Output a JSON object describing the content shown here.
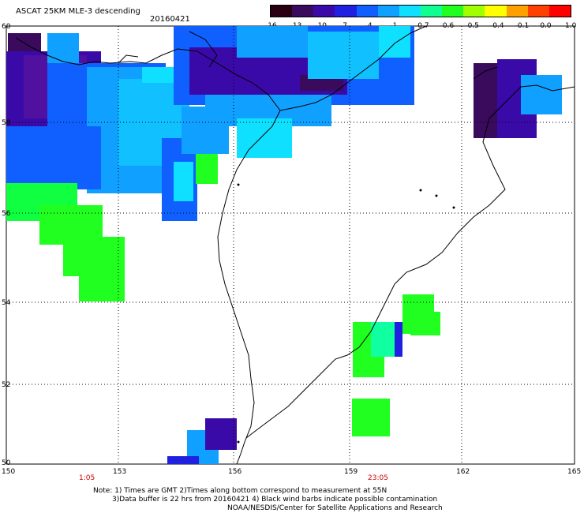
{
  "header": {
    "title": "ASCAT 25KM MLE-3 descending",
    "date": "20160421"
  },
  "colorbar": {
    "labels": [
      "-16",
      "-13",
      "-10",
      "-7",
      "-4",
      "-1",
      "-0.7",
      "-0.6",
      "-0.5",
      "-0.4",
      "-0.1",
      "0.0",
      "1.0"
    ],
    "colors": [
      "#2a0010",
      "#3a0a5c",
      "#3a0aa8",
      "#2020e0",
      "#1060ff",
      "#10a0ff",
      "#10e0ff",
      "#10ff90",
      "#20ff20",
      "#a0ff00",
      "#ffff00",
      "#ffa000",
      "#ff4000",
      "#ff0000"
    ]
  },
  "axes": {
    "lat_labels": [
      "60",
      "58",
      "56",
      "54",
      "52",
      "50"
    ],
    "lon_labels": [
      "150",
      "153",
      "156",
      "159",
      "162",
      "165"
    ],
    "time_labels": [
      "1:05",
      "23:05"
    ]
  },
  "notes": {
    "line1": "Note: 1) Times are GMT 2)Times along bottom correspond to measurement at 55N",
    "line2": "3)Data buffer is 22 hrs from 20160421 4) Black wind barbs indicate possible contamination",
    "line3": "NOAA/NESDIS/Center for Satellite Applications and Research"
  }
}
